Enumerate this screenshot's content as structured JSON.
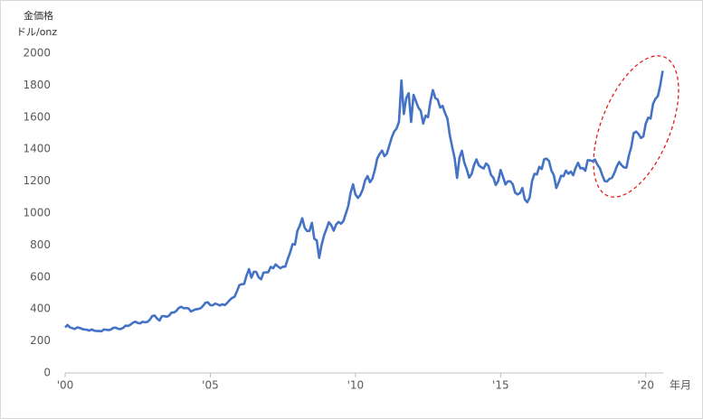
{
  "chart_data": {
    "type": "line",
    "unit_title": "金価格",
    "unit_label": "ドル/onz",
    "x_axis_label": "年月",
    "xlim": [
      2000,
      2020.6
    ],
    "xticks": [
      {
        "value": 2000,
        "label": "'00"
      },
      {
        "value": 2005,
        "label": "'05"
      },
      {
        "value": 2010,
        "label": "'10"
      },
      {
        "value": 2015,
        "label": "'15"
      },
      {
        "value": 2020,
        "label": "'20"
      }
    ],
    "ylim": [
      0,
      2000
    ],
    "yticks": [
      0,
      200,
      400,
      600,
      800,
      1000,
      1200,
      1400,
      1600,
      1800,
      2000
    ],
    "x": [
      2000,
      2000.083,
      2000.167,
      2000.25,
      2000.333,
      2000.417,
      2000.5,
      2000.583,
      2000.667,
      2000.75,
      2000.833,
      2000.917,
      2001,
      2001.083,
      2001.167,
      2001.25,
      2001.333,
      2001.417,
      2001.5,
      2001.583,
      2001.667,
      2001.75,
      2001.833,
      2001.917,
      2002,
      2002.083,
      2002.167,
      2002.25,
      2002.333,
      2002.417,
      2002.5,
      2002.583,
      2002.667,
      2002.75,
      2002.833,
      2002.917,
      2003,
      2003.083,
      2003.167,
      2003.25,
      2003.333,
      2003.417,
      2003.5,
      2003.583,
      2003.667,
      2003.75,
      2003.833,
      2003.917,
      2004,
      2004.083,
      2004.167,
      2004.25,
      2004.333,
      2004.417,
      2004.5,
      2004.583,
      2004.667,
      2004.75,
      2004.833,
      2004.917,
      2005,
      2005.083,
      2005.167,
      2005.25,
      2005.333,
      2005.417,
      2005.5,
      2005.583,
      2005.667,
      2005.75,
      2005.833,
      2005.917,
      2006,
      2006.083,
      2006.167,
      2006.25,
      2006.333,
      2006.417,
      2006.5,
      2006.583,
      2006.667,
      2006.75,
      2006.833,
      2006.917,
      2007,
      2007.083,
      2007.167,
      2007.25,
      2007.333,
      2007.417,
      2007.5,
      2007.583,
      2007.667,
      2007.75,
      2007.833,
      2007.917,
      2008,
      2008.083,
      2008.167,
      2008.25,
      2008.333,
      2008.417,
      2008.5,
      2008.583,
      2008.667,
      2008.75,
      2008.833,
      2008.917,
      2009,
      2009.083,
      2009.167,
      2009.25,
      2009.333,
      2009.417,
      2009.5,
      2009.583,
      2009.667,
      2009.75,
      2009.833,
      2009.917,
      2010,
      2010.083,
      2010.167,
      2010.25,
      2010.333,
      2010.417,
      2010.5,
      2010.583,
      2010.667,
      2010.75,
      2010.833,
      2010.917,
      2011,
      2011.083,
      2011.167,
      2011.25,
      2011.333,
      2011.417,
      2011.5,
      2011.583,
      2011.667,
      2011.75,
      2011.833,
      2011.917,
      2012,
      2012.083,
      2012.167,
      2012.25,
      2012.333,
      2012.417,
      2012.5,
      2012.583,
      2012.667,
      2012.75,
      2012.833,
      2012.917,
      2013,
      2013.083,
      2013.167,
      2013.25,
      2013.333,
      2013.417,
      2013.5,
      2013.583,
      2013.667,
      2013.75,
      2013.833,
      2013.917,
      2014,
      2014.083,
      2014.167,
      2014.25,
      2014.333,
      2014.417,
      2014.5,
      2014.583,
      2014.667,
      2014.75,
      2014.833,
      2014.917,
      2015,
      2015.083,
      2015.167,
      2015.25,
      2015.333,
      2015.417,
      2015.5,
      2015.583,
      2015.667,
      2015.75,
      2015.833,
      2015.917,
      2016,
      2016.083,
      2016.167,
      2016.25,
      2016.333,
      2016.417,
      2016.5,
      2016.583,
      2016.667,
      2016.75,
      2016.833,
      2016.917,
      2017,
      2017.083,
      2017.167,
      2017.25,
      2017.333,
      2017.417,
      2017.5,
      2017.583,
      2017.667,
      2017.75,
      2017.833,
      2017.917,
      2018,
      2018.083,
      2018.167,
      2018.25,
      2018.333,
      2018.417,
      2018.5,
      2018.583,
      2018.667,
      2018.75,
      2018.833,
      2018.917,
      2019,
      2019.083,
      2019.167,
      2019.25,
      2019.333,
      2019.417,
      2019.5,
      2019.583,
      2019.667,
      2019.75,
      2019.833,
      2019.917,
      2020,
      2020.083,
      2020.167,
      2020.25,
      2020.333,
      2020.417,
      2020.5,
      2020.583
    ],
    "series": [
      {
        "color": "#4472c4",
        "values": [
          285,
          300,
          285,
          280,
          275,
          285,
          282,
          275,
          272,
          270,
          265,
          272,
          265,
          262,
          263,
          260,
          272,
          270,
          268,
          272,
          283,
          283,
          276,
          275,
          282,
          296,
          294,
          302,
          314,
          321,
          313,
          310,
          320,
          317,
          319,
          333,
          356,
          359,
          340,
          328,
          355,
          356,
          351,
          359,
          378,
          378,
          389,
          407,
          414,
          405,
          406,
          404,
          384,
          392,
          398,
          400,
          405,
          420,
          439,
          442,
          424,
          423,
          434,
          429,
          422,
          430,
          424,
          438,
          456,
          469,
          476,
          510,
          549,
          555,
          557,
          610,
          650,
          596,
          633,
          632,
          598,
          586,
          628,
          629,
          631,
          664,
          655,
          679,
          666,
          655,
          665,
          665,
          712,
          754,
          806,
          803,
          889,
          922,
          968,
          909,
          888,
          889,
          939,
          839,
          829,
          720,
          800,
          860,
          900,
          943,
          924,
          890,
          928,
          945,
          934,
          949,
          996,
          1043,
          1127,
          1180,
          1117,
          1095,
          1113,
          1148,
          1205,
          1232,
          1193,
          1215,
          1270,
          1342,
          1370,
          1391,
          1356,
          1372,
          1424,
          1473,
          1510,
          1529,
          1572,
          1830,
          1620,
          1720,
          1750,
          1570,
          1740,
          1700,
          1660,
          1640,
          1560,
          1610,
          1600,
          1700,
          1770,
          1720,
          1710,
          1660,
          1671,
          1627,
          1592,
          1487,
          1414,
          1343,
          1220,
          1347,
          1390,
          1316,
          1275,
          1222,
          1244,
          1300,
          1336,
          1299,
          1287,
          1279,
          1311,
          1296,
          1239,
          1222,
          1176,
          1201,
          1270,
          1227,
          1179,
          1199,
          1199,
          1181,
          1128,
          1117,
          1125,
          1157,
          1086,
          1068,
          1097,
          1200,
          1246,
          1242,
          1290,
          1276,
          1337,
          1341,
          1326,
          1266,
          1238,
          1157,
          1192,
          1234,
          1231,
          1266,
          1246,
          1260,
          1237,
          1283,
          1315,
          1280,
          1282,
          1265,
          1331,
          1330,
          1325,
          1335,
          1303,
          1282,
          1238,
          1201,
          1198,
          1215,
          1220,
          1250,
          1291,
          1320,
          1300,
          1286,
          1284,
          1359,
          1413,
          1500,
          1510,
          1495,
          1470,
          1480,
          1560,
          1597,
          1592,
          1683,
          1715,
          1732,
          1800,
          1890
        ]
      }
    ]
  }
}
